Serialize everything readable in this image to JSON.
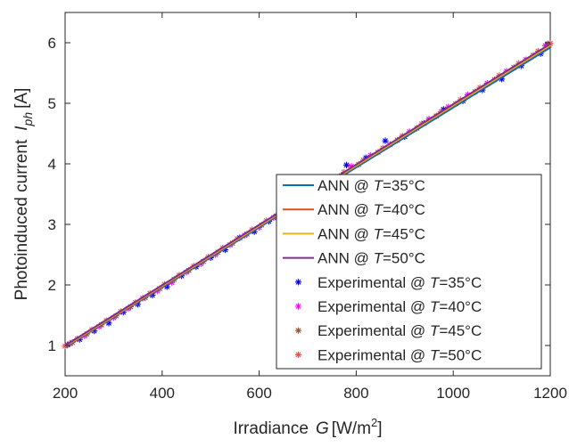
{
  "chart_data": {
    "type": "line",
    "xlabel": {
      "main": "Irradiance",
      "symbol": "G",
      "unit_prefix": "[W/m",
      "unit_sup": "2",
      "unit_suffix": "]"
    },
    "ylabel": {
      "main": "Photoinduced current",
      "symbol": "I",
      "symbol_sub": "ph",
      "unit": "[A]"
    },
    "xlim": [
      200,
      1200
    ],
    "ylim": [
      0.5,
      6.5
    ],
    "xticks": [
      200,
      400,
      600,
      800,
      1000,
      1200
    ],
    "yticks": [
      1,
      2,
      3,
      4,
      5,
      6
    ],
    "grid": false,
    "legend_position": "bottom-right",
    "series": [
      {
        "name": "ANN @ T=35°C",
        "label_prefix": "ANN @ ",
        "label_var": "T",
        "label_value": "=35°C",
        "kind": "line",
        "color": "#0072BD",
        "x": [
          200,
          1200
        ],
        "y": [
          0.97,
          5.92
        ]
      },
      {
        "name": "ANN @ T=40°C",
        "label_prefix": "ANN @ ",
        "label_var": "T",
        "label_value": "=40°C",
        "kind": "line",
        "color": "#D95319",
        "x": [
          200,
          1200
        ],
        "y": [
          0.98,
          5.95
        ]
      },
      {
        "name": "ANN @ T=45°C",
        "label_prefix": "ANN @ ",
        "label_var": "T",
        "label_value": "=45°C",
        "kind": "line",
        "color": "#EDB120",
        "x": [
          200,
          1200
        ],
        "y": [
          0.99,
          5.96
        ]
      },
      {
        "name": "ANN @ T=50°C",
        "label_prefix": "ANN @ ",
        "label_var": "T",
        "label_value": "=50°C",
        "kind": "line",
        "color": "#7E2F8E",
        "x": [
          200,
          1200
        ],
        "y": [
          1.0,
          5.98
        ]
      },
      {
        "name": "Experimental @ T=35°C",
        "label_prefix": "Experimental @ ",
        "label_var": "T",
        "label_value": "=35°C",
        "kind": "marker",
        "color": "#0000FF",
        "x": [
          205,
          230,
          260,
          290,
          320,
          350,
          380,
          410,
          440,
          470,
          500,
          530,
          560,
          590,
          620,
          650,
          680,
          710,
          740,
          780,
          820,
          860,
          900,
          940,
          980,
          1020,
          1060,
          1100,
          1140,
          1180,
          1195
        ],
        "y": [
          1.01,
          1.1,
          1.24,
          1.37,
          1.55,
          1.68,
          1.83,
          1.97,
          2.15,
          2.3,
          2.45,
          2.58,
          2.78,
          2.88,
          3.05,
          3.18,
          3.35,
          3.52,
          3.68,
          3.98,
          4.1,
          4.38,
          4.45,
          4.67,
          4.9,
          5.04,
          5.22,
          5.4,
          5.62,
          5.82,
          5.98
        ]
      },
      {
        "name": "Experimental @ T=40°C",
        "label_prefix": "Experimental @ ",
        "label_var": "T",
        "label_value": "=40°C",
        "kind": "marker",
        "color": "#FF00FF",
        "x": [
          210,
          240,
          270,
          300,
          330,
          360,
          390,
          420,
          450,
          480,
          510,
          540,
          570,
          600,
          630,
          660,
          690,
          720,
          750,
          790,
          830,
          870,
          910,
          950,
          990,
          1030,
          1070,
          1110,
          1150,
          1190
        ],
        "y": [
          1.03,
          1.16,
          1.31,
          1.46,
          1.61,
          1.78,
          1.9,
          2.04,
          2.21,
          2.35,
          2.5,
          2.66,
          2.82,
          2.95,
          3.11,
          3.26,
          3.44,
          3.59,
          3.74,
          3.96,
          4.14,
          4.32,
          4.53,
          4.74,
          4.94,
          5.14,
          5.33,
          5.53,
          5.72,
          5.95
        ]
      },
      {
        "name": "Experimental @ T=45°C",
        "label_prefix": "Experimental @ ",
        "label_var": "T",
        "label_value": "=45°C",
        "kind": "marker",
        "color": "#A0522D",
        "x": [
          215,
          245,
          275,
          305,
          335,
          365,
          395,
          425,
          455,
          485,
          515,
          545,
          575,
          605,
          635,
          665,
          695,
          725,
          765,
          805,
          845,
          885,
          925,
          965,
          1005,
          1045,
          1085,
          1125,
          1165,
          1198
        ],
        "y": [
          1.05,
          1.19,
          1.34,
          1.49,
          1.64,
          1.79,
          1.94,
          2.09,
          2.24,
          2.39,
          2.54,
          2.69,
          2.84,
          2.99,
          3.14,
          3.29,
          3.44,
          3.59,
          3.79,
          3.99,
          4.19,
          4.39,
          4.59,
          4.79,
          4.99,
          5.19,
          5.39,
          5.59,
          5.79,
          5.96
        ]
      },
      {
        "name": "Experimental @ T=50°C",
        "label_prefix": "Experimental @ ",
        "label_var": "T",
        "label_value": "=50°C",
        "kind": "marker",
        "color": "#E8524A",
        "x": [
          200,
          225,
          255,
          285,
          315,
          345,
          375,
          405,
          435,
          465,
          495,
          525,
          555,
          585,
          615,
          645,
          675,
          705,
          735,
          775,
          815,
          855,
          895,
          935,
          975,
          1015,
          1055,
          1095,
          1135,
          1175,
          1200
        ],
        "y": [
          0.99,
          1.11,
          1.26,
          1.41,
          1.56,
          1.71,
          1.86,
          2.01,
          2.16,
          2.31,
          2.46,
          2.61,
          2.76,
          2.91,
          3.06,
          3.21,
          3.36,
          3.51,
          3.66,
          3.86,
          4.06,
          4.26,
          4.46,
          4.66,
          4.86,
          5.06,
          5.26,
          5.46,
          5.66,
          5.86,
          5.99
        ]
      }
    ]
  }
}
